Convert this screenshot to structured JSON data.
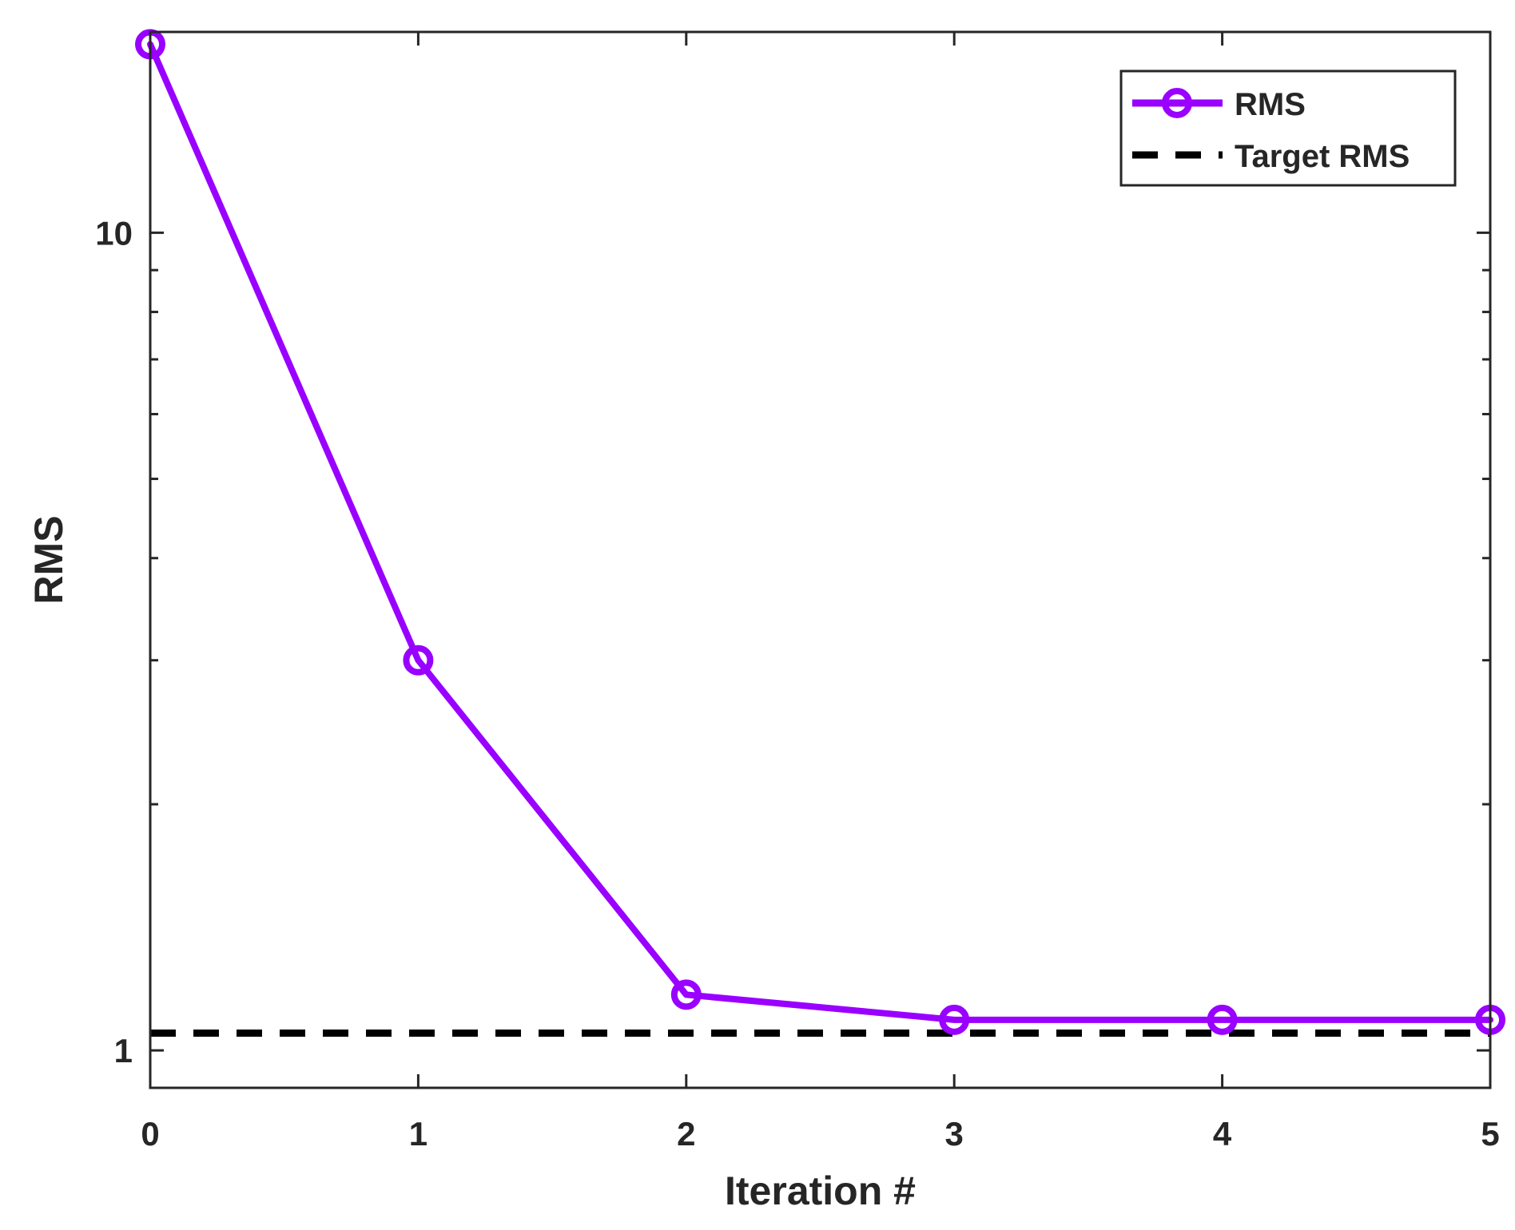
{
  "chart_data": {
    "type": "line",
    "title": "",
    "xlabel": "Iteration #",
    "ylabel": "RMS",
    "yscale": "log",
    "xlim": [
      0,
      5
    ],
    "ylim": [
      0.9,
      17.6
    ],
    "x_ticks": [
      0,
      1,
      2,
      3,
      4,
      5
    ],
    "x_tick_labels": [
      "0",
      "1",
      "2",
      "3",
      "4",
      "5"
    ],
    "y_ticks": [
      1,
      10
    ],
    "y_tick_labels": [
      "1",
      "10"
    ],
    "y_minor_ticks": [
      2,
      3,
      4,
      5,
      6,
      7,
      8,
      9
    ],
    "grid": false,
    "legend_position": "top-right",
    "series": [
      {
        "name": "RMS",
        "color": "#9900FF",
        "marker": "circle",
        "line_style": "solid",
        "x": [
          0,
          1,
          2,
          3,
          4,
          5
        ],
        "values": [
          17.0,
          3.0,
          1.17,
          1.09,
          1.09,
          1.09
        ]
      },
      {
        "name": "Target RMS",
        "color": "#000000",
        "marker": "none",
        "line_style": "dashed",
        "x": [
          0,
          5
        ],
        "values": [
          1.05,
          1.05
        ]
      }
    ]
  }
}
